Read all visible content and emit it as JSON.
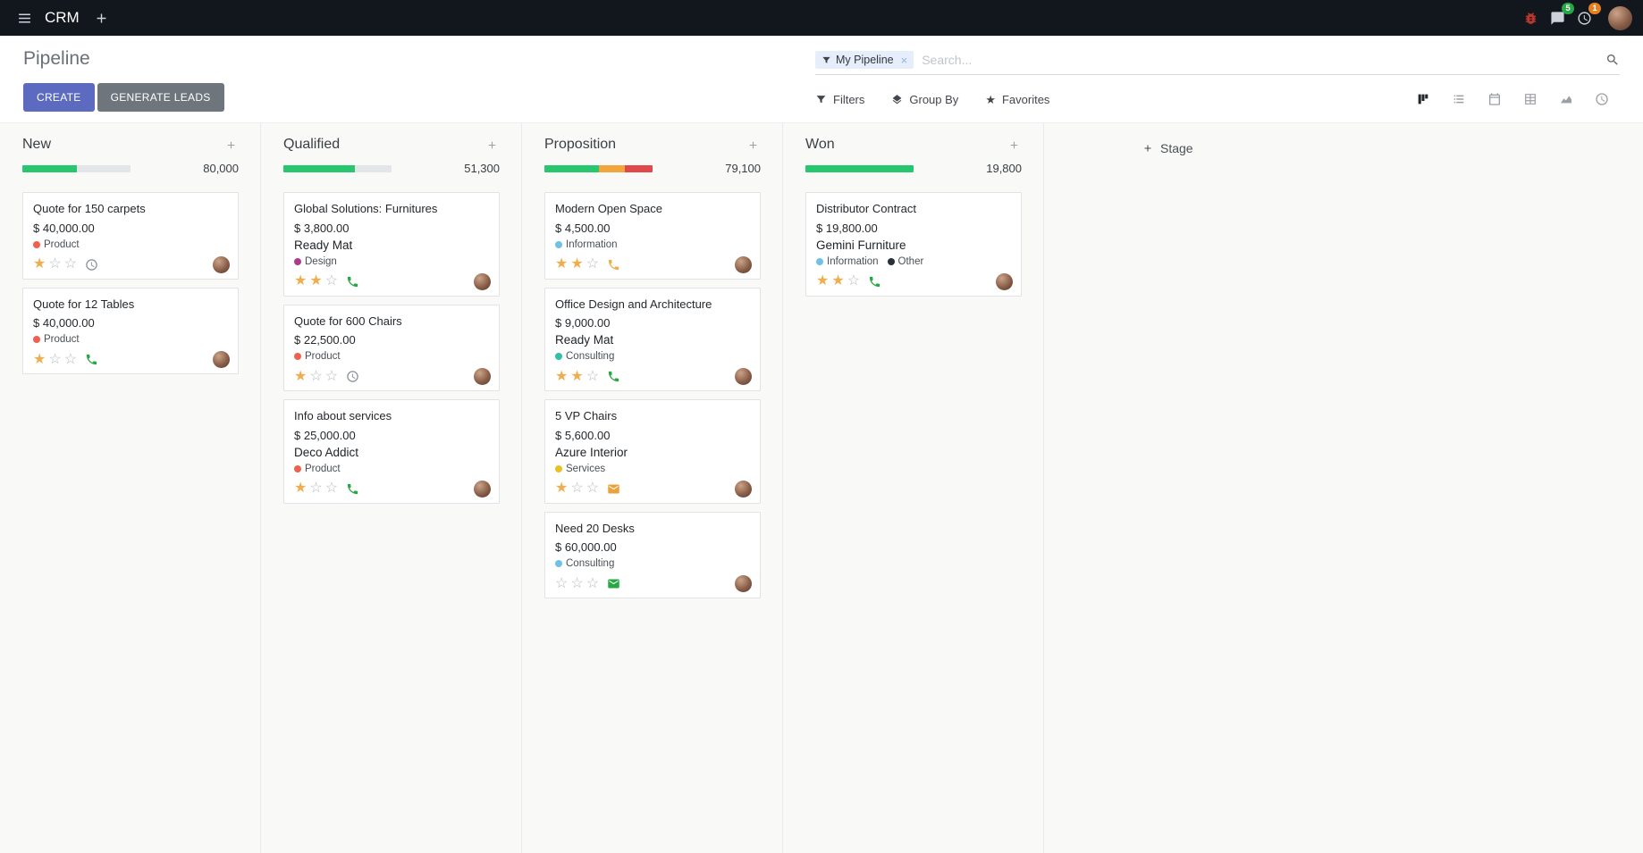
{
  "topbar": {
    "app_name": "CRM",
    "messages_badge": "5",
    "activities_badge": "1"
  },
  "control_panel": {
    "title": "Pipeline",
    "buttons": {
      "create": "CREATE",
      "generate_leads": "GENERATE LEADS"
    },
    "search": {
      "facet_label": "My Pipeline",
      "placeholder": "Search..."
    },
    "filter_menu": {
      "filters": "Filters",
      "group_by": "Group By",
      "favorites": "Favorites"
    },
    "view_switcher": {
      "active": "kanban",
      "views": [
        "kanban",
        "list",
        "calendar",
        "pivot",
        "graph",
        "activity"
      ]
    }
  },
  "board": {
    "add_stage_label": "Stage",
    "columns": [
      {
        "name": "New",
        "total": "80,000",
        "progress": [
          {
            "color": "#28c76f",
            "pct": 50
          }
        ],
        "cards": [
          {
            "title": "Quote for 150 carpets",
            "amount": "$ 40,000.00",
            "tags": [
              {
                "label": "Product",
                "color": "#f06050"
              }
            ],
            "stars": 1,
            "activity": {
              "type": "clock",
              "color": "#878f97"
            }
          },
          {
            "title": "Quote for 12 Tables",
            "amount": "$ 40,000.00",
            "tags": [
              {
                "label": "Product",
                "color": "#f06050"
              }
            ],
            "stars": 1,
            "activity": {
              "type": "phone",
              "color": "#28a745"
            }
          }
        ]
      },
      {
        "name": "Qualified",
        "total": "51,300",
        "progress": [
          {
            "color": "#28c76f",
            "pct": 66
          }
        ],
        "cards": [
          {
            "title": "Global Solutions: Furnitures",
            "amount": "$ 3,800.00",
            "partner": "Ready Mat",
            "tags": [
              {
                "label": "Design",
                "color": "#b03a8c"
              }
            ],
            "stars": 2,
            "activity": {
              "type": "phone",
              "color": "#28a745"
            }
          },
          {
            "title": "Quote for 600 Chairs",
            "amount": "$ 22,500.00",
            "tags": [
              {
                "label": "Product",
                "color": "#f06050"
              }
            ],
            "stars": 1,
            "activity": {
              "type": "clock",
              "color": "#878f97"
            }
          },
          {
            "title": "Info about services",
            "amount": "$ 25,000.00",
            "partner": "Deco Addict",
            "tags": [
              {
                "label": "Product",
                "color": "#f06050"
              }
            ],
            "stars": 1,
            "activity": {
              "type": "phone",
              "color": "#28a745"
            }
          }
        ]
      },
      {
        "name": "Proposition",
        "total": "79,100",
        "progress": [
          {
            "color": "#28c76f",
            "pct": 50
          },
          {
            "color": "#f2a53c",
            "pct": 24
          },
          {
            "color": "#e0494b",
            "pct": 26
          }
        ],
        "cards": [
          {
            "title": "Modern Open Space",
            "amount": "$ 4,500.00",
            "tags": [
              {
                "label": "Information",
                "color": "#6ec2e8"
              }
            ],
            "stars": 2,
            "activity": {
              "type": "phone",
              "color": "#f0ad4e"
            }
          },
          {
            "title": "Office Design and Architecture",
            "amount": "$ 9,000.00",
            "partner": "Ready Mat",
            "tags": [
              {
                "label": "Consulting",
                "color": "#2fc1a7"
              }
            ],
            "stars": 2,
            "activity": {
              "type": "phone",
              "color": "#28a745"
            }
          },
          {
            "title": "5 VP Chairs",
            "amount": "$ 5,600.00",
            "partner": "Azure Interior",
            "tags": [
              {
                "label": "Services",
                "color": "#eac124"
              }
            ],
            "stars": 1,
            "activity": {
              "type": "envelope",
              "color": "#e8a33d"
            }
          },
          {
            "title": "Need 20 Desks",
            "amount": "$ 60,000.00",
            "tags": [
              {
                "label": "Consulting",
                "color": "#6ec2e8"
              }
            ],
            "stars": 0,
            "activity": {
              "type": "envelope",
              "color": "#28a745"
            }
          }
        ]
      },
      {
        "name": "Won",
        "total": "19,800",
        "progress": [
          {
            "color": "#28c76f",
            "pct": 100
          }
        ],
        "cards": [
          {
            "title": "Distributor Contract",
            "amount": "$ 19,800.00",
            "partner": "Gemini Furniture",
            "tags": [
              {
                "label": "Information",
                "color": "#6ec2e8"
              },
              {
                "label": "Other",
                "color": "#27313c"
              }
            ],
            "stars": 2,
            "activity": {
              "type": "phone",
              "color": "#28a745"
            }
          }
        ]
      }
    ]
  },
  "colors": {
    "navbar_bg": "#12161d",
    "create_button": "#5c6bc0",
    "generate_button": "#6e757c",
    "board_bg": "#f9f9f8",
    "star_filled": "#f0ad4e",
    "progress_green": "#28c76f",
    "progress_orange": "#f2a53c",
    "progress_red": "#e0494b",
    "badge_green": "#28a745",
    "badge_orange": "#e67e22"
  },
  "icons": {
    "navbar": [
      "hamburger-icon",
      "plus-icon",
      "bug-icon",
      "chat-icon",
      "clock-icon"
    ],
    "search": [
      "filter-funnel-icon",
      "magnifier-icon"
    ],
    "filter_menu": [
      "filter-funnel-icon",
      "layers-icon",
      "star-icon"
    ],
    "view_switcher": [
      "kanban-icon",
      "list-icon",
      "calendar-icon",
      "pivot-icon",
      "graph-icon",
      "activity-clock-icon"
    ],
    "card_activity": [
      "clock-icon",
      "phone-icon",
      "envelope-icon"
    ]
  }
}
